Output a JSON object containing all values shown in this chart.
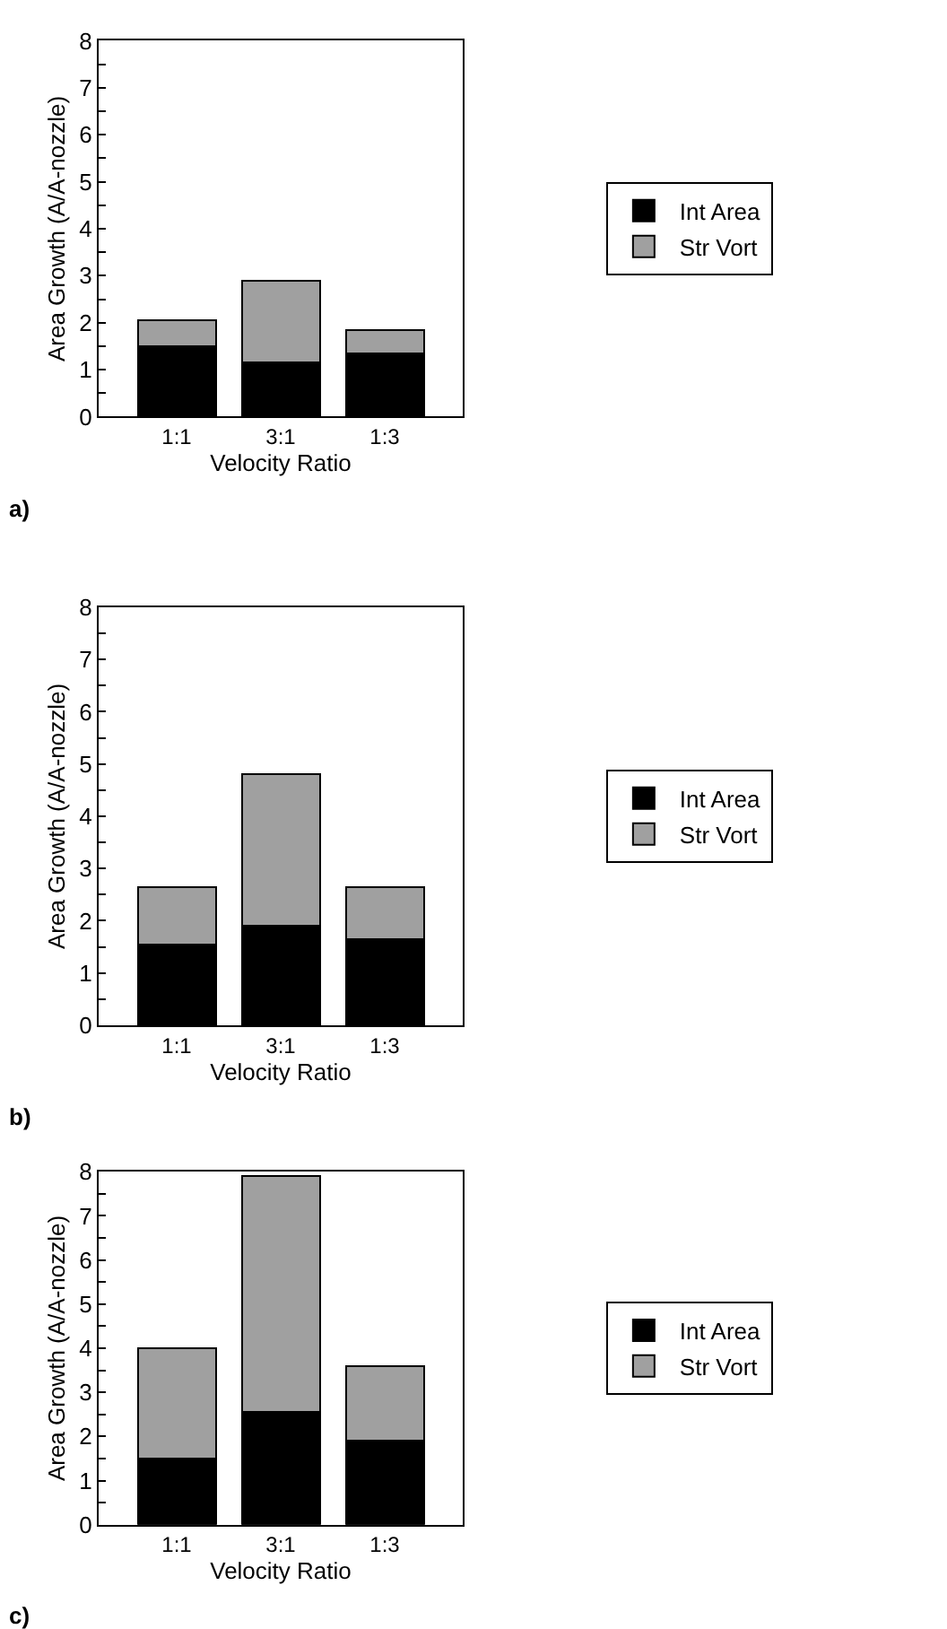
{
  "chart_data": [
    {
      "type": "bar",
      "stacked": true,
      "categories": [
        "1:1",
        "3:1",
        "1:3"
      ],
      "xlabel": "Velocity Ratio",
      "ylabel": "Area Growth (A/A-nozzle)",
      "ylim": [
        0,
        8
      ],
      "yticks": [
        0,
        {
          "value": 0.5,
          "label": null
        },
        1,
        {
          "value": 1.5,
          "label": null
        },
        2,
        {
          "value": 2.5,
          "label": null
        },
        3,
        {
          "value": 3.5,
          "label": null
        },
        4,
        {
          "value": 4.5,
          "label": null
        },
        5,
        {
          "value": 5.5,
          "label": null
        },
        6,
        {
          "value": 6.5,
          "label": null
        },
        7,
        {
          "value": 7.5,
          "label": null
        },
        8
      ],
      "legend": "right",
      "annotations": [
        "a)"
      ],
      "series": [
        {
          "name": "Int Area",
          "color": "#000000",
          "values": [
            1.5,
            1.15,
            1.35
          ]
        },
        {
          "name": "Str Vort",
          "color": "#a0a0a0",
          "values": [
            0.55,
            1.75,
            0.5
          ]
        }
      ]
    },
    {
      "type": "bar",
      "stacked": true,
      "categories": [
        "1:1",
        "3:1",
        "1:3"
      ],
      "xlabel": "Velocity Ratio",
      "ylabel": "Area Growth (A/A-nozzle)",
      "ylim": [
        0,
        8
      ],
      "yticks": [
        0,
        {
          "value": 0.5,
          "label": null
        },
        1,
        {
          "value": 1.5,
          "label": null
        },
        2,
        {
          "value": 2.5,
          "label": null
        },
        3,
        {
          "value": 3.5,
          "label": null
        },
        4,
        {
          "value": 4.5,
          "label": null
        },
        5,
        {
          "value": 5.5,
          "label": null
        },
        6,
        {
          "value": 6.5,
          "label": null
        },
        7,
        {
          "value": 7.5,
          "label": null
        },
        8
      ],
      "legend": "right",
      "annotations": [
        "b)"
      ],
      "series": [
        {
          "name": "Int Area",
          "color": "#000000",
          "values": [
            1.55,
            1.9,
            1.65
          ]
        },
        {
          "name": "Str Vort",
          "color": "#a0a0a0",
          "values": [
            1.1,
            2.9,
            1.0
          ]
        }
      ]
    },
    {
      "type": "bar",
      "stacked": true,
      "categories": [
        "1:1",
        "3:1",
        "1:3"
      ],
      "xlabel": "Velocity Ratio",
      "ylabel": "Area Growth (A/A-nozzle)",
      "ylim": [
        0,
        8
      ],
      "yticks": [
        0,
        {
          "value": 0.5,
          "label": null
        },
        1,
        {
          "value": 1.5,
          "label": null
        },
        2,
        {
          "value": 2.5,
          "label": null
        },
        3,
        {
          "value": 3.5,
          "label": null
        },
        4,
        {
          "value": 4.5,
          "label": null
        },
        5,
        {
          "value": 5.5,
          "label": null
        },
        6,
        {
          "value": 6.5,
          "label": null
        },
        7,
        {
          "value": 7.5,
          "label": null
        },
        8
      ],
      "legend": "right",
      "annotations": [
        "c)"
      ],
      "series": [
        {
          "name": "Int Area",
          "color": "#000000",
          "values": [
            1.5,
            2.55,
            1.9
          ]
        },
        {
          "name": "Str Vort",
          "color": "#a0a0a0",
          "values": [
            2.5,
            5.35,
            1.7
          ]
        }
      ]
    }
  ]
}
